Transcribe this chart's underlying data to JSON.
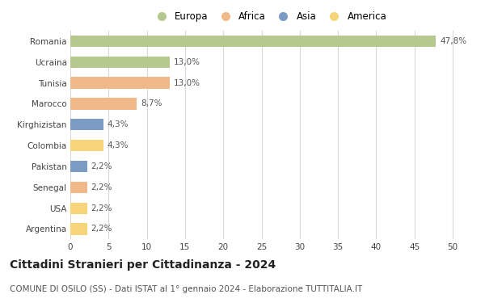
{
  "countries": [
    "Romania",
    "Ucraina",
    "Tunisia",
    "Marocco",
    "Kirghizistan",
    "Colombia",
    "Pakistan",
    "Senegal",
    "USA",
    "Argentina"
  ],
  "values": [
    47.8,
    13.0,
    13.0,
    8.7,
    4.3,
    4.3,
    2.2,
    2.2,
    2.2,
    2.2
  ],
  "labels": [
    "47,8%",
    "13,0%",
    "13,0%",
    "8,7%",
    "4,3%",
    "4,3%",
    "2,2%",
    "2,2%",
    "2,2%",
    "2,2%"
  ],
  "continents": [
    "Europa",
    "Europa",
    "Africa",
    "Africa",
    "Asia",
    "America",
    "Asia",
    "Africa",
    "America",
    "America"
  ],
  "colors": {
    "Europa": "#b5c98e",
    "Africa": "#f0b98a",
    "Asia": "#7a9bc4",
    "America": "#f5d47a"
  },
  "legend_order": [
    "Europa",
    "Africa",
    "Asia",
    "America"
  ],
  "title": "Cittadini Stranieri per Cittadinanza - 2024",
  "subtitle": "COMUNE DI OSILO (SS) - Dati ISTAT al 1° gennaio 2024 - Elaborazione TUTTITALIA.IT",
  "xlim": [
    0,
    52
  ],
  "xticks": [
    0,
    5,
    10,
    15,
    20,
    25,
    30,
    35,
    40,
    45,
    50
  ],
  "bg_color": "#ffffff",
  "grid_color": "#d8d8d8",
  "bar_height": 0.55,
  "title_fontsize": 10,
  "subtitle_fontsize": 7.5,
  "label_fontsize": 7.5,
  "tick_fontsize": 7.5,
  "legend_fontsize": 8.5
}
